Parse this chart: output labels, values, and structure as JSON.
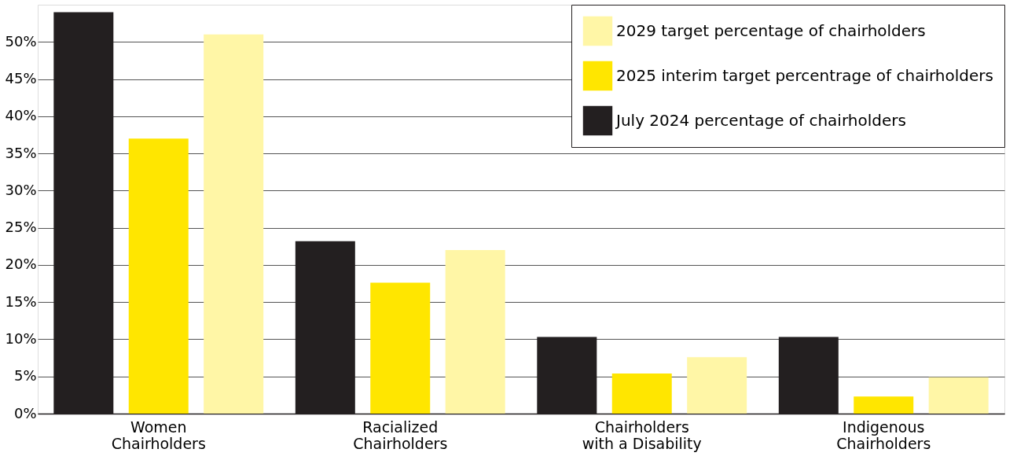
{
  "chart_data": {
    "type": "bar",
    "categories": [
      "Women\nChairholders",
      "Racialized\nChairholders",
      "Chairholders\nwith a Disability",
      "Indigenous\nChairholders"
    ],
    "series": [
      {
        "name": "July 2024 percentage of chairholders",
        "color": "#231f20",
        "values": [
          54,
          23.2,
          10.3,
          10.3
        ]
      },
      {
        "name": "2025 interim target percentrage of chairholders",
        "color": "#ffe600",
        "values": [
          37,
          17.6,
          5.4,
          2.3
        ]
      },
      {
        "name": "2029 target percentage of chairholders",
        "color": "#fff6a6",
        "values": [
          51,
          22,
          7.6,
          4.9
        ]
      }
    ],
    "ylim": [
      0,
      55
    ],
    "yticks": [
      {
        "value": 0,
        "label": "0%"
      },
      {
        "value": 5,
        "label": "5%"
      },
      {
        "value": 10,
        "label": "10%"
      },
      {
        "value": 15,
        "label": "15%"
      },
      {
        "value": 20,
        "label": "20%"
      },
      {
        "value": 25,
        "label": "25%"
      },
      {
        "value": 30,
        "label": "30%"
      },
      {
        "value": 35,
        "label": "35%"
      },
      {
        "value": 40,
        "label": "40%"
      },
      {
        "value": 45,
        "label": "45%"
      },
      {
        "value": 50,
        "label": "50%"
      }
    ],
    "grid": "y",
    "legend": "top right"
  }
}
